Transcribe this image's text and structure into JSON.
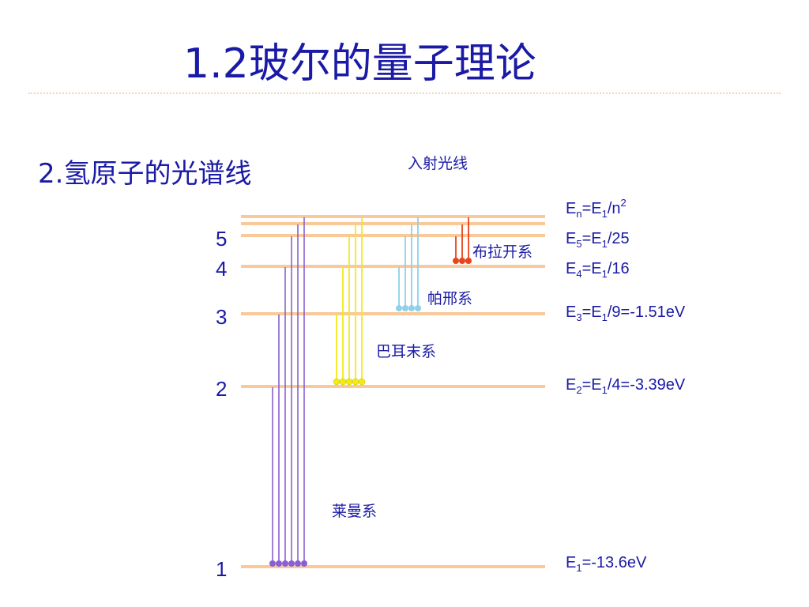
{
  "title": "1.2玻尔的量子理论",
  "subtitle": "2.氢原子的光谱线",
  "colors": {
    "text": "#1a1aa6",
    "level_line": "#f9c99a",
    "lyman": "#8a5fd1",
    "balmer": "#f2ea1a",
    "paschen": "#8fd0ea",
    "brackett": "#e8431c"
  },
  "labels": {
    "incident": "入射光线",
    "lyman": "莱曼系",
    "balmer": "巴耳末系",
    "paschen": "帕邢系",
    "brackett": "布拉开系"
  },
  "level_numbers": [
    "5",
    "4",
    "3",
    "2",
    "1"
  ],
  "equations": {
    "general": {
      "a": "E",
      "a_sub": "n",
      "b": "=E",
      "b_sub": "1",
      "c": "/n",
      "c_sup": "2"
    },
    "e5": {
      "a": "E",
      "a_sub": "5",
      "b": "=E",
      "b_sub": "1",
      "c": "/25"
    },
    "e4": {
      "a": "E",
      "a_sub": "4",
      "b": "=E",
      "b_sub": "1",
      "c": "/16"
    },
    "e3": {
      "a": "E",
      "a_sub": "3",
      "b": "=E",
      "b_sub": "1",
      "c": "/9=-1.51eV"
    },
    "e2": {
      "a": "E",
      "a_sub": "2",
      "b": "=E",
      "b_sub": "1",
      "c": "/4=-3.39eV"
    },
    "e1": {
      "a": "E",
      "a_sub": "1",
      "c": "=-13.6eV"
    }
  }
}
